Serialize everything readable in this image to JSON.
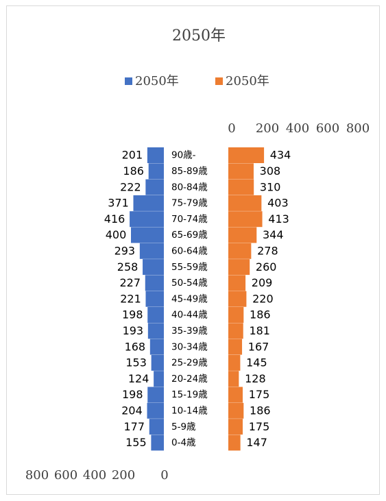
{
  "chart_data": {
    "type": "bar",
    "title": "2050年",
    "legend_position": "top",
    "categories": [
      "90歳-",
      "85-89歳",
      "80-84歳",
      "75-79歳",
      "70-74歳",
      "65-69歳",
      "60-64歳",
      "55-59歳",
      "50-54歳",
      "45-49歳",
      "40-44歳",
      "35-39歳",
      "30-34歳",
      "25-29歳",
      "20-24歳",
      "15-19歳",
      "10-14歳",
      "5-9歳",
      "0-4歳"
    ],
    "series": [
      {
        "name": "2050年",
        "color": "#4472c4",
        "side": "left",
        "values": [
          201,
          186,
          222,
          371,
          416,
          400,
          293,
          258,
          227,
          221,
          198,
          193,
          168,
          153,
          124,
          198,
          204,
          177,
          155
        ]
      },
      {
        "name": "2050年",
        "color": "#ed7d31",
        "side": "right",
        "values": [
          434,
          308,
          310,
          403,
          413,
          344,
          278,
          260,
          209,
          220,
          186,
          181,
          167,
          145,
          128,
          175,
          186,
          175,
          147
        ]
      }
    ],
    "left_axis_ticks": [
      "800",
      "600",
      "400",
      "200",
      "0"
    ],
    "right_axis_ticks": [
      "0",
      "200",
      "400",
      "600",
      "800"
    ],
    "xlim": [
      0,
      800
    ],
    "grid": false
  }
}
